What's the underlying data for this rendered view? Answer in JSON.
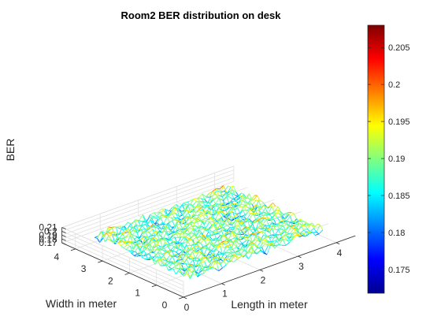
{
  "chart_data": {
    "type": "mesh3d",
    "title": "Room2 BER distribution on desk",
    "xlabel": "Length in meter",
    "ylabel": "Width in meter",
    "zlabel": "BER",
    "xlim": [
      0,
      4.5
    ],
    "ylim": [
      0,
      4.5
    ],
    "zlim": [
      0.17,
      0.21
    ],
    "xticks": [
      "0",
      "1",
      "2",
      "3",
      "4"
    ],
    "yticks": [
      "0",
      "1",
      "2",
      "3",
      "4"
    ],
    "zticks": [
      "0.17",
      "0.18",
      "0.19",
      "0.2",
      "0.21"
    ],
    "colormap": "jet",
    "grid": true,
    "colorbar": {
      "min": 0.1718,
      "max": 0.208,
      "ticks": [
        "0.175",
        "0.18",
        "0.185",
        "0.19",
        "0.195",
        "0.2",
        "0.205"
      ]
    },
    "surface": {
      "x_range": [
        0.5,
        4.0
      ],
      "y_range": [
        0.5,
        4.0
      ],
      "z_mean": 0.188,
      "z_min": 0.1718,
      "z_max": 0.208,
      "description": "noisy mesh of BER values over the desk surface"
    }
  }
}
